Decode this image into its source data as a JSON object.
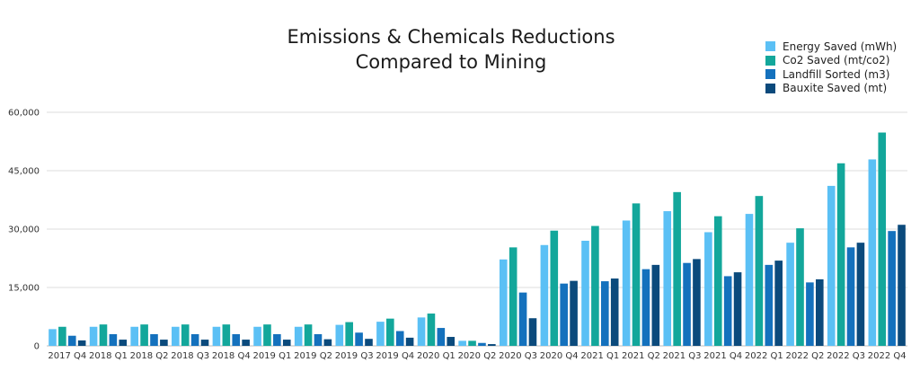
{
  "chart_data": {
    "type": "bar",
    "title": [
      "Emissions & Chemicals Reductions",
      "Compared to Mining"
    ],
    "xlabel": "",
    "ylabel": "",
    "ylim": [
      0,
      60000
    ],
    "yticks": [
      0,
      15000,
      30000,
      45000,
      60000
    ],
    "ytick_labels": [
      "0",
      "15,000",
      "30,000",
      "45,000",
      "60,000"
    ],
    "grid": true,
    "legend_position": "top-right",
    "categories": [
      "2017 Q4",
      "2018 Q1",
      "2018 Q2",
      "2018 Q3",
      "2018 Q4",
      "2019 Q1",
      "2019 Q2",
      "2019 Q3",
      "2019 Q4",
      "2020 Q1",
      "2020 Q2",
      "2020 Q3",
      "2020 Q4",
      "2021 Q1",
      "2021 Q2",
      "2021 Q3",
      "2021 Q4",
      "2022 Q1",
      "2022 Q2",
      "2022 Q3",
      "2022 Q4"
    ],
    "series": [
      {
        "name": "Energy Saved (mWh)",
        "color": "#5bc0f5",
        "values": [
          4300,
          4900,
          4900,
          4900,
          4900,
          4900,
          4900,
          5400,
          6200,
          7300,
          1300,
          22200,
          25900,
          27000,
          32200,
          34600,
          29200,
          33900,
          26500,
          41100,
          47900
        ]
      },
      {
        "name": "Co2 Saved (mt/co2)",
        "color": "#13a79b",
        "values": [
          4900,
          5500,
          5500,
          5500,
          5500,
          5500,
          5500,
          6100,
          7000,
          8300,
          1300,
          25300,
          29600,
          30800,
          36600,
          39500,
          33300,
          38500,
          30200,
          46900,
          54800
        ]
      },
      {
        "name": "Landfill Sorted (m3)",
        "color": "#1471bd",
        "values": [
          2600,
          3000,
          3000,
          3000,
          3000,
          3000,
          3000,
          3400,
          3800,
          4600,
          750,
          13700,
          16000,
          16600,
          19700,
          21300,
          17900,
          20800,
          16300,
          25300,
          29500
        ]
      },
      {
        "name": "Bauxite Saved (mt)",
        "color": "#0b4a7c",
        "values": [
          1400,
          1600,
          1600,
          1600,
          1600,
          1600,
          1700,
          1800,
          2100,
          2300,
          450,
          7100,
          16700,
          17300,
          20800,
          22300,
          18900,
          21900,
          17100,
          26500,
          31100
        ]
      }
    ]
  }
}
